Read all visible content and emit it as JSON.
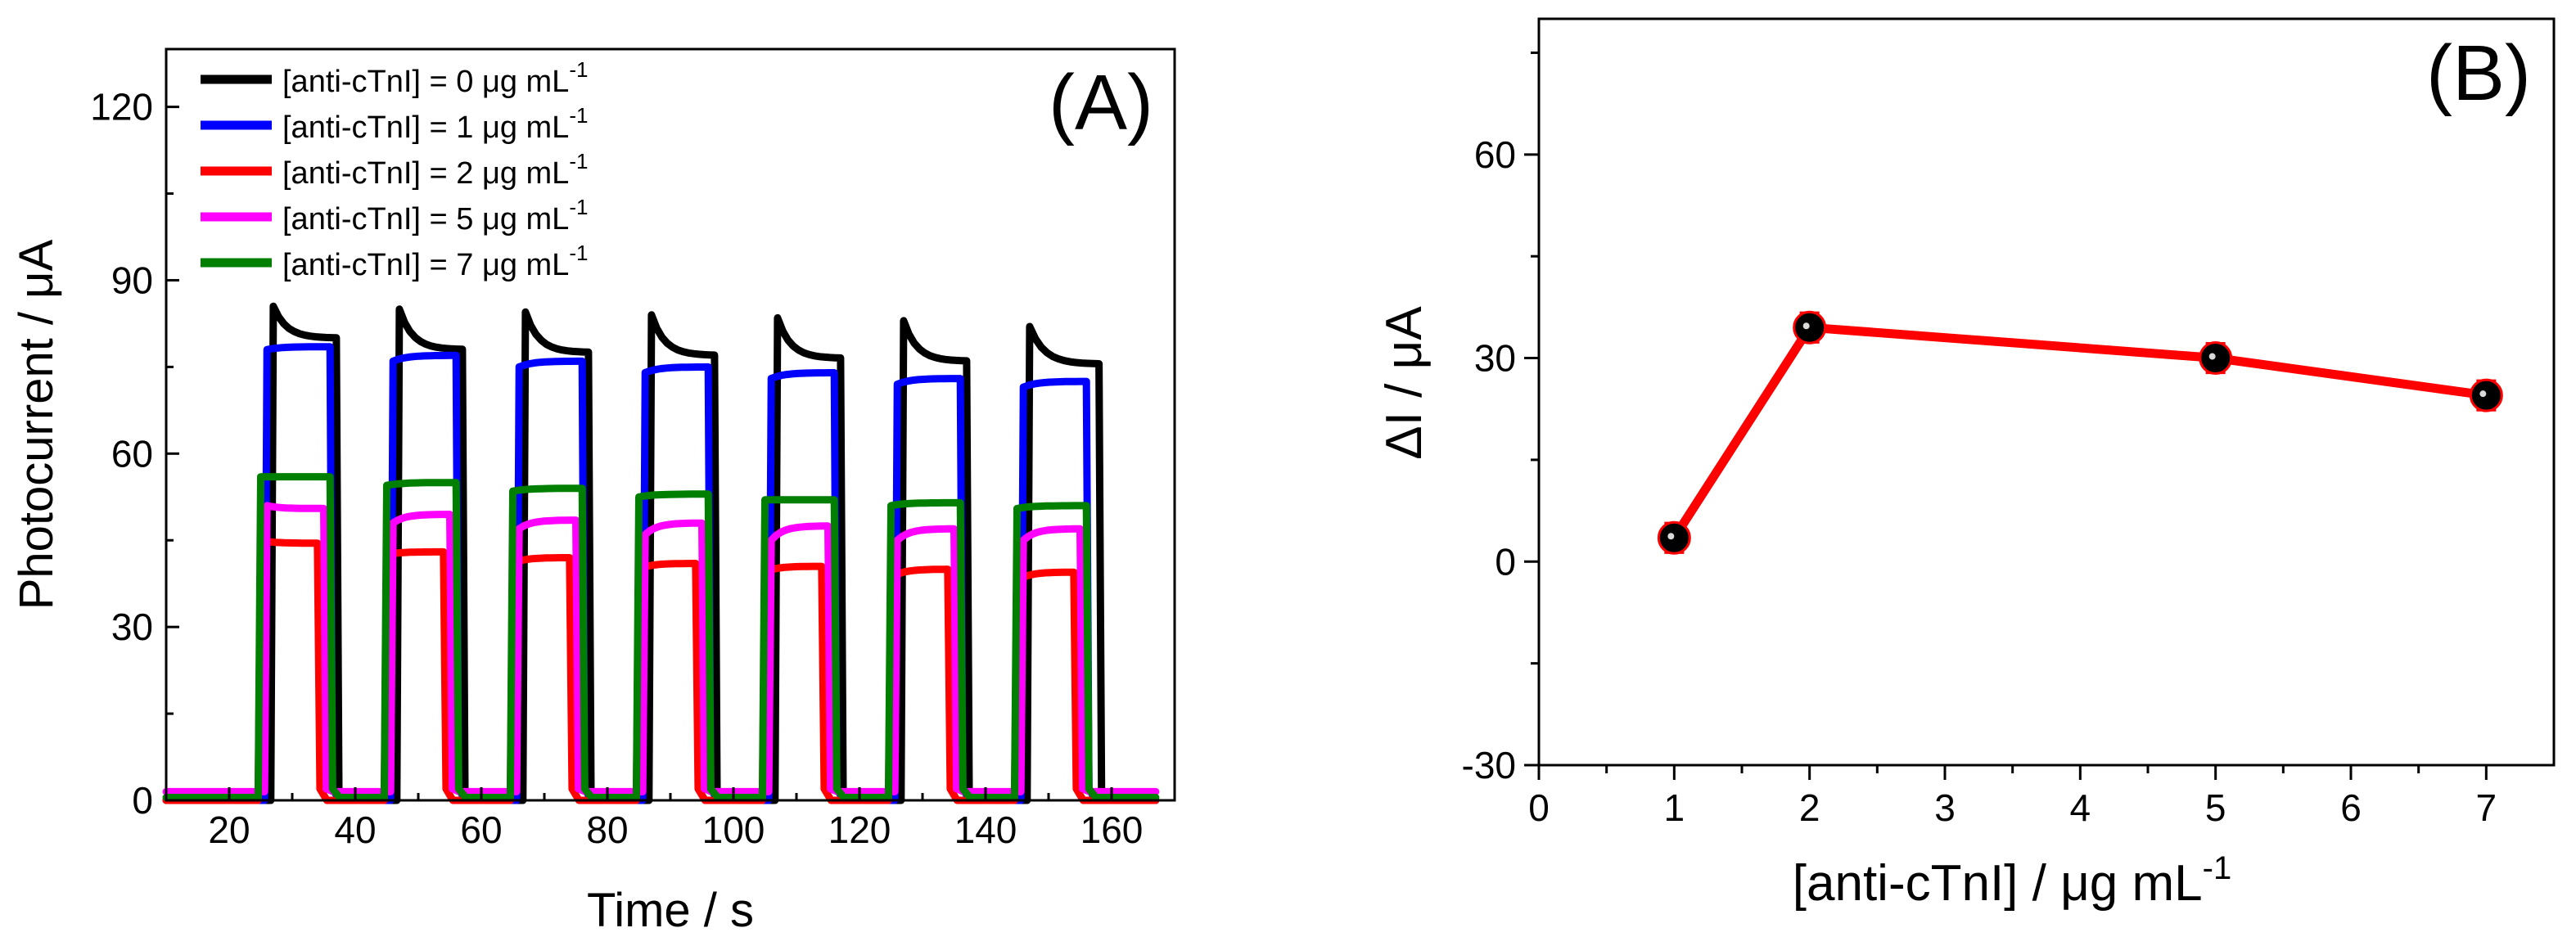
{
  "chart_data": [
    {
      "type": "line",
      "panel_label": "(A)",
      "xlabel": "Time / s",
      "ylabel": "Photocurrent / μA",
      "xlim": [
        10,
        170
      ],
      "ylim": [
        0,
        130
      ],
      "xticks": [
        "20",
        "40",
        "60",
        "80",
        "100",
        "120",
        "140",
        "160"
      ],
      "yticks": [
        "0",
        "30",
        "60",
        "90",
        "120"
      ],
      "legend_position": "top-left",
      "series": [
        {
          "name": "[anti-cTnI] = 0 μg mL",
          "name_sup": "-1",
          "color": "#000000",
          "baseline": 0,
          "pulses": [
            {
              "on": 27,
              "off": 37,
              "peak": 85.5,
              "plateau": 80
            },
            {
              "on": 47,
              "off": 57,
              "peak": 85,
              "plateau": 78
            },
            {
              "on": 67,
              "off": 77,
              "peak": 84.5,
              "plateau": 77.5
            },
            {
              "on": 87,
              "off": 97,
              "peak": 84,
              "plateau": 77
            },
            {
              "on": 107,
              "off": 117,
              "peak": 83.5,
              "plateau": 76.5
            },
            {
              "on": 127,
              "off": 137,
              "peak": 83,
              "plateau": 76
            },
            {
              "on": 147,
              "off": 158,
              "peak": 82,
              "plateau": 75.5
            }
          ]
        },
        {
          "name": "[anti-cTnI] = 1 μg mL",
          "name_sup": "-1",
          "color": "#0000ff",
          "baseline": 0,
          "pulses": [
            {
              "on": 26,
              "off": 36,
              "peak": 78,
              "plateau": 78.5
            },
            {
              "on": 46,
              "off": 56,
              "peak": 76,
              "plateau": 77
            },
            {
              "on": 66,
              "off": 76,
              "peak": 75,
              "plateau": 76
            },
            {
              "on": 86,
              "off": 96,
              "peak": 74,
              "plateau": 75
            },
            {
              "on": 106,
              "off": 116,
              "peak": 73,
              "plateau": 74
            },
            {
              "on": 126,
              "off": 136,
              "peak": 72,
              "plateau": 73
            },
            {
              "on": 146,
              "off": 156,
              "peak": 71.5,
              "plateau": 72.5
            }
          ]
        },
        {
          "name": "[anti-cTnI] = 2 μg mL",
          "name_sup": "-1",
          "color": "#ff0000",
          "baseline": 0,
          "pulses": [
            {
              "on": 25,
              "off": 34,
              "peak": 45,
              "plateau": 44.5
            },
            {
              "on": 45,
              "off": 54,
              "peak": 42.5,
              "plateau": 43
            },
            {
              "on": 65,
              "off": 74,
              "peak": 41,
              "plateau": 42
            },
            {
              "on": 85,
              "off": 94,
              "peak": 40,
              "plateau": 41
            },
            {
              "on": 105,
              "off": 114,
              "peak": 39.5,
              "plateau": 40.5
            },
            {
              "on": 125,
              "off": 134,
              "peak": 38.5,
              "plateau": 40
            },
            {
              "on": 145,
              "off": 154,
              "peak": 38,
              "plateau": 39.5
            }
          ]
        },
        {
          "name": "[anti-cTnI] = 5 μg mL",
          "name_sup": "-1",
          "color": "#ff00ff",
          "baseline": 1.5,
          "pulses": [
            {
              "on": 26,
              "off": 35,
              "peak": 51,
              "plateau": 50.5
            },
            {
              "on": 46,
              "off": 55,
              "peak": 48,
              "plateau": 49.5
            },
            {
              "on": 66,
              "off": 75,
              "peak": 47,
              "plateau": 48.5
            },
            {
              "on": 86,
              "off": 95,
              "peak": 46,
              "plateau": 48
            },
            {
              "on": 106,
              "off": 115,
              "peak": 45,
              "plateau": 47.5
            },
            {
              "on": 126,
              "off": 135,
              "peak": 45,
              "plateau": 47
            },
            {
              "on": 146,
              "off": 155,
              "peak": 45,
              "plateau": 47
            }
          ]
        },
        {
          "name": "[anti-cTnI] = 7 μg mL",
          "name_sup": "-1",
          "color": "#007f00",
          "baseline": 0.5,
          "pulses": [
            {
              "on": 25,
              "off": 36,
              "peak": 56,
              "plateau": 56
            },
            {
              "on": 45,
              "off": 56,
              "peak": 54.5,
              "plateau": 55
            },
            {
              "on": 65,
              "off": 76,
              "peak": 53.5,
              "plateau": 54
            },
            {
              "on": 85,
              "off": 96,
              "peak": 52.5,
              "plateau": 53
            },
            {
              "on": 105,
              "off": 116,
              "peak": 52,
              "plateau": 52
            },
            {
              "on": 125,
              "off": 136,
              "peak": 51,
              "plateau": 51.5
            },
            {
              "on": 145,
              "off": 156,
              "peak": 50.5,
              "plateau": 51
            }
          ]
        }
      ]
    },
    {
      "type": "line",
      "panel_label": "(B)",
      "xlabel": "[anti-cTnI] / μg mL",
      "xlabel_sup": "-1",
      "ylabel": "ΔI / μA",
      "xlim": [
        0,
        7.5
      ],
      "ylim": [
        -30,
        80
      ],
      "xticks": [
        "0",
        "1",
        "2",
        "3",
        "4",
        "5",
        "6",
        "7"
      ],
      "yticks": [
        "-30",
        "0",
        "30",
        "60"
      ],
      "series": [
        {
          "name": "ΔI",
          "color": "#ff0000",
          "marker_color": "#000000",
          "x": [
            1,
            2,
            5,
            7
          ],
          "y": [
            3.5,
            34.5,
            30,
            24.5
          ],
          "error": [
            2,
            2,
            2,
            2
          ]
        }
      ]
    }
  ]
}
